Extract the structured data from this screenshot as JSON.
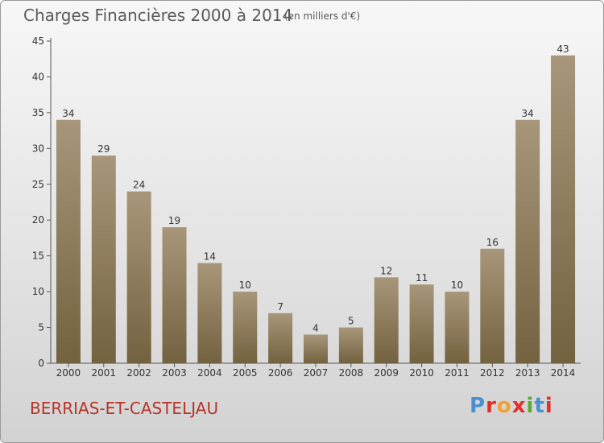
{
  "header": {
    "title": "Charges Financières 2000 à 2014",
    "subtitle": "(en milliers d'€)"
  },
  "footer": {
    "commune": "BERRIAS-ET-CASTELJAU",
    "brand": "Proxiti"
  },
  "colors": {
    "bar_top": "#a8967a",
    "bar_bottom": "#73623f",
    "logo_letters": [
      "#4a8fd1",
      "#e0302a",
      "#f0a030",
      "#e0302a",
      "#5aaa3a",
      "#4a8fd1",
      "#e0302a"
    ]
  },
  "chart_data": {
    "type": "bar",
    "title": "Charges Financières 2000 à 2014",
    "subtitle": "(en milliers d'€)",
    "categories": [
      "2000",
      "2001",
      "2002",
      "2003",
      "2004",
      "2005",
      "2006",
      "2007",
      "2008",
      "2009",
      "2010",
      "2011",
      "2012",
      "2013",
      "2014"
    ],
    "values": [
      34,
      29,
      24,
      19,
      14,
      10,
      7,
      4,
      5,
      12,
      11,
      10,
      16,
      34,
      43
    ],
    "ylim": [
      0,
      45
    ],
    "yticks": [
      0,
      5,
      10,
      15,
      20,
      25,
      30,
      35,
      40,
      45
    ],
    "grid": false,
    "data_labels": true
  }
}
